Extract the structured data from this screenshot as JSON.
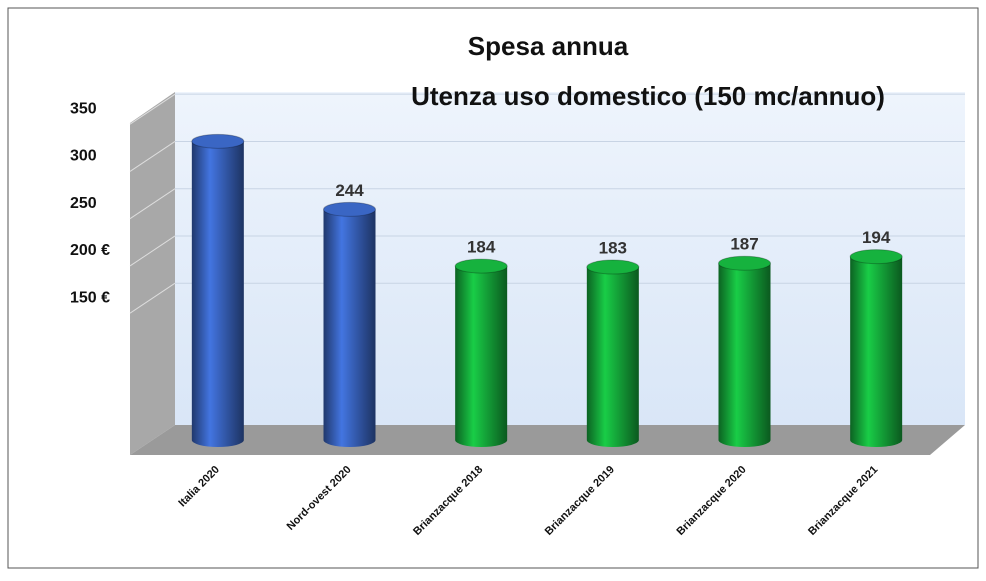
{
  "chart_data": {
    "type": "bar3d",
    "title": [
      "Spesa annua",
      "Utenza uso domestico (150 mc/annuo)"
    ],
    "categories": [
      "Italia 2020",
      "Nord-ovest 2020",
      "Brianzacque 2018",
      "Brianzacque 2019",
      "Brianzacque 2020",
      "Brianzacque 2021"
    ],
    "values": [
      316,
      244,
      184,
      183,
      187,
      194
    ],
    "value_labels": [
      null,
      "244",
      "184",
      "183",
      "187",
      "194"
    ],
    "colors": [
      "#3a66c4",
      "#3a66c4",
      "#16b23e",
      "#16b23e",
      "#16b23e",
      "#16b23e"
    ],
    "ylim": [
      0,
      365
    ],
    "yticks": [
      {
        "value": 150,
        "label": "150 €"
      },
      {
        "value": 200,
        "label": "200 €"
      },
      250,
      300,
      350
    ],
    "grid": true
  }
}
